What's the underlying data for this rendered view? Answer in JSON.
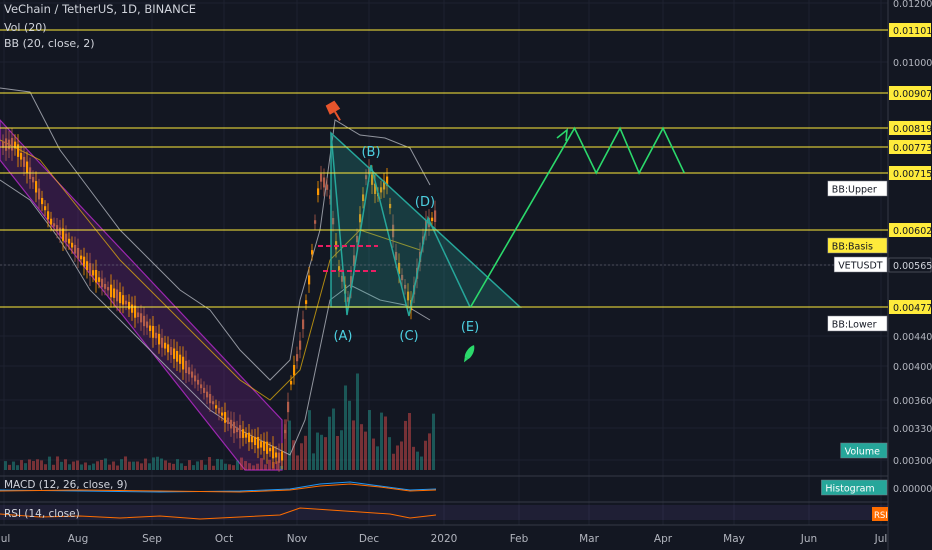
{
  "legend": {
    "symbol": "VeChain / TetherUS, 1D, BINANCE",
    "vol": "Vol (20)",
    "bb": "BB (20, close, 2)",
    "macd": "MACD (12, 26, close, 9)",
    "rsi": "RSI (14, close)"
  },
  "colors": {
    "background": "#131722",
    "yellow_line": "#ffeb3b",
    "triangle": "#26a69a",
    "projection": "#2bd96b",
    "channel": "#9c27b0",
    "bb_band": "#b2b5be",
    "candle_up": "#ff9800",
    "candle_down": "#b25d4a",
    "pink": "#e91e63",
    "rsi_line": "#ff6d00"
  },
  "chart_data": {
    "type": "line",
    "xlabel": "",
    "ylabel": "",
    "x_ticks": [
      "Jul",
      "Aug",
      "Sep",
      "Oct",
      "Nov",
      "Dec",
      "2020",
      "Feb",
      "Mar",
      "Apr",
      "May",
      "Jun",
      "Jul"
    ],
    "y_ticks": [
      "0.012000",
      "0.010000",
      "0.006000",
      "0.004400",
      "0.004000",
      "0.003600",
      "0.003300",
      "0.003000"
    ],
    "price_levels": [
      "0.011010",
      "0.009070",
      "0.008196",
      "0.007730",
      "0.007150",
      "0.006020",
      "0.004770"
    ],
    "current_price": "0.005659",
    "ylim": [
      0.0029,
      0.0122
    ],
    "tags": {
      "bb_upper": "BB:Upper",
      "bb_basis": "BB:Basis",
      "bb_lower": "BB:Lower",
      "symbol": "VETUSDT",
      "volume": "Volume",
      "histogram": "Histogram",
      "macd_value": "0.000000",
      "rsi": "RSI"
    },
    "wave_labels": [
      "(A)",
      "(B)",
      "(C)",
      "(D)",
      "(E)"
    ],
    "price_path": [
      {
        "date": "Jun 29",
        "price": 0.0089
      },
      {
        "date": "Jul 5",
        "price": 0.0078
      },
      {
        "date": "Jul 12",
        "price": 0.0071
      },
      {
        "date": "Jul 20",
        "price": 0.0062
      },
      {
        "date": "Jul 28",
        "price": 0.0059
      },
      {
        "date": "Aug 5",
        "price": 0.0056
      },
      {
        "date": "Aug 12",
        "price": 0.0052
      },
      {
        "date": "Aug 20",
        "price": 0.0049
      },
      {
        "date": "Aug 28",
        "price": 0.0046
      },
      {
        "date": "Sep 5",
        "price": 0.0043
      },
      {
        "date": "Sep 12",
        "price": 0.0041
      },
      {
        "date": "Sep 20",
        "price": 0.0038
      },
      {
        "date": "Sep 28",
        "price": 0.0035
      },
      {
        "date": "Oct 5",
        "price": 0.0033
      },
      {
        "date": "Oct 12",
        "price": 0.0032
      },
      {
        "date": "Oct 20",
        "price": 0.0031
      },
      {
        "date": "Oct 25",
        "price": 0.003
      },
      {
        "date": "Oct 29",
        "price": 0.0038
      },
      {
        "date": "Nov 2",
        "price": 0.0043
      },
      {
        "date": "Nov 6",
        "price": 0.0055
      },
      {
        "date": "Nov 10",
        "price": 0.0071
      },
      {
        "date": "Nov 14",
        "price": 0.0068
      },
      {
        "date": "Nov 18",
        "price": 0.0056
      },
      {
        "date": "Nov 22",
        "price": 0.0049
      },
      {
        "date": "Nov 26",
        "price": 0.006
      },
      {
        "date": "Nov 30",
        "price": 0.0073
      },
      {
        "date": "Dec 4",
        "price": 0.0067
      },
      {
        "date": "Dec 8",
        "price": 0.007
      },
      {
        "date": "Dec 12",
        "price": 0.0057
      },
      {
        "date": "Dec 18",
        "price": 0.0048
      },
      {
        "date": "Dec 24",
        "price": 0.0061
      },
      {
        "date": "Dec 28",
        "price": 0.0063
      },
      {
        "date": "Jan 1",
        "price": 0.0057
      }
    ],
    "projection_path": [
      {
        "date": "Jan 12",
        "price": 0.00477
      },
      {
        "date": "Feb 24",
        "price": 0.00819
      },
      {
        "date": "Mar 4",
        "price": 0.00715
      },
      {
        "date": "Mar 14",
        "price": 0.00819
      },
      {
        "date": "Mar 22",
        "price": 0.00715
      },
      {
        "date": "Apr 1",
        "price": 0.00819
      },
      {
        "date": "Apr 10",
        "price": 0.00715
      }
    ]
  }
}
